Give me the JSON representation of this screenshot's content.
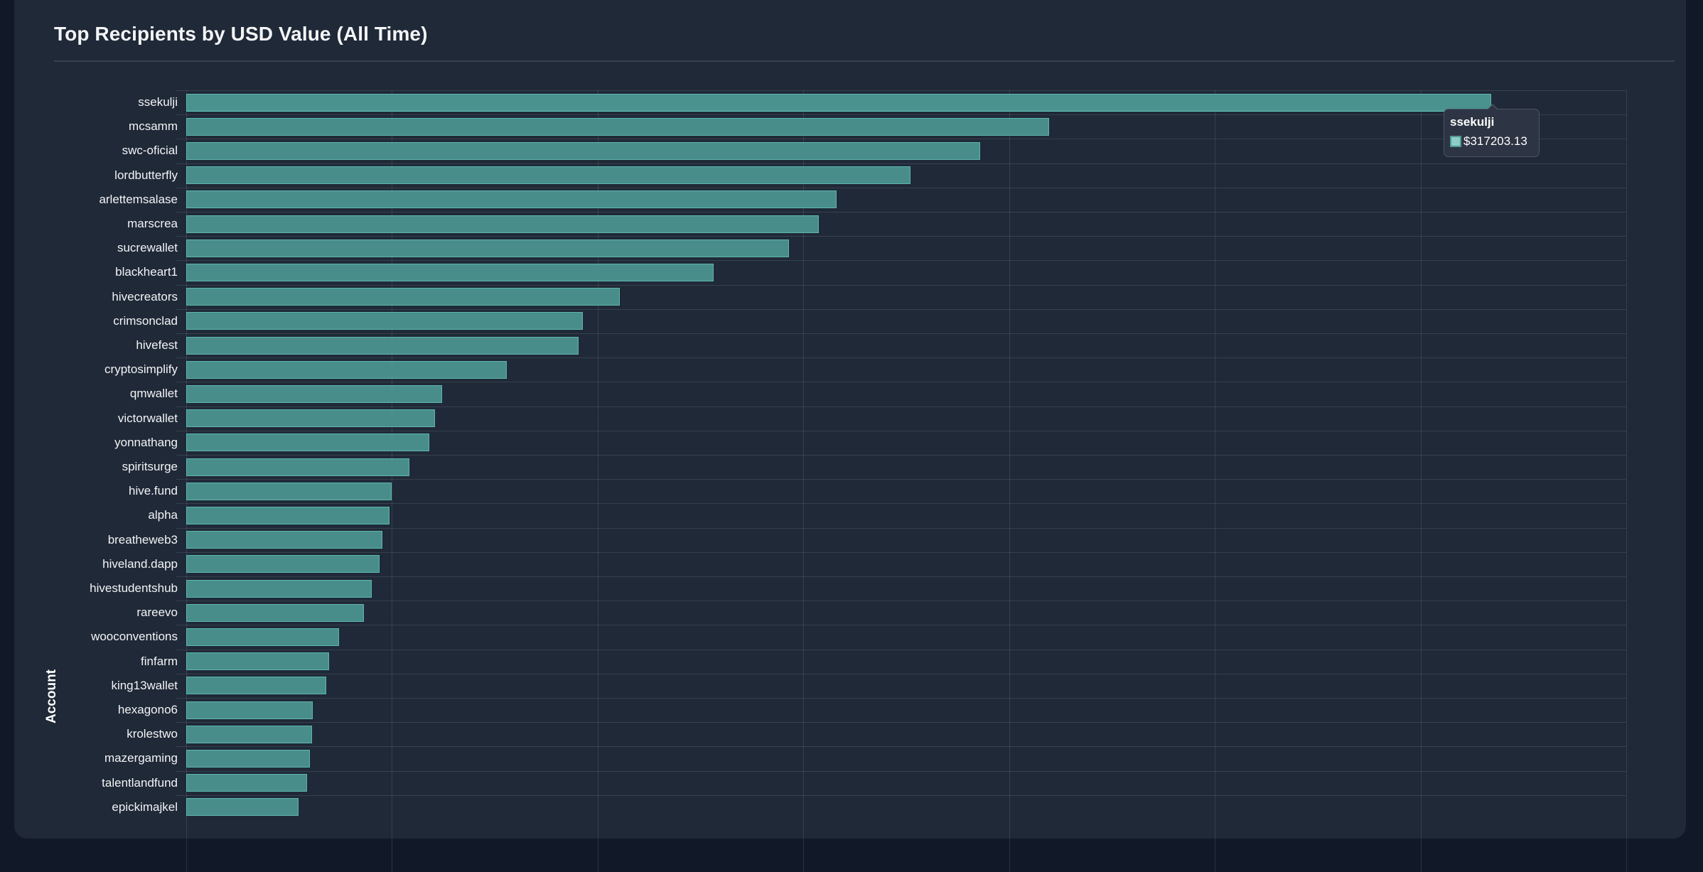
{
  "card": {
    "title": "Top Recipients by USD Value (All Time)"
  },
  "tooltip": {
    "account": "ssekulji",
    "value": "$317203.13",
    "swatch_color": "#8ecdc8"
  },
  "colors": {
    "page_bg": "#111827",
    "card_bg": "#1f2937",
    "bar_fill": "#4d9692",
    "bar_border": "#5db5ad",
    "grid": "#374151",
    "text": "#f3f4f6"
  },
  "chart_data": {
    "type": "bar",
    "orientation": "horizontal",
    "title": "Top Recipients by USD Value (All Time)",
    "xlabel": "",
    "ylabel": "Account",
    "xlim": [
      0,
      350000
    ],
    "x_gridlines": [
      0,
      50000,
      100000,
      150000,
      200000,
      250000,
      300000,
      350000
    ],
    "grid": true,
    "legend": "none",
    "categories": [
      "ssekulji",
      "mcsamm",
      "swc-oficial",
      "lordbutterfly",
      "arlettemsalase",
      "marscrea",
      "sucrewallet",
      "blackheart1",
      "hivecreators",
      "crimsonclad",
      "hivefest",
      "cryptosimplify",
      "qmwallet",
      "victorwallet",
      "yonnathang",
      "spiritsurge",
      "hive.fund",
      "alpha",
      "breatheweb3",
      "hiveland.dapp",
      "hivestudentshub",
      "rareevo",
      "wooconventions",
      "finfarm",
      "king13wallet",
      "hexagono6",
      "krolestwo",
      "mazergaming",
      "talentlandfund",
      "epickimajkel"
    ],
    "series": [
      {
        "name": "USD Value",
        "values": [
          317203.13,
          209700,
          193000,
          176000,
          158100,
          153800,
          146500,
          128200,
          105400,
          96400,
          95400,
          77900,
          62200,
          60500,
          59100,
          54200,
          49900,
          49400,
          47700,
          47000,
          45100,
          43200,
          37100,
          34700,
          34000,
          30800,
          30600,
          30100,
          29400,
          27300
        ]
      }
    ],
    "highlighted": {
      "category": "ssekulji",
      "label": "$317203.13"
    }
  }
}
